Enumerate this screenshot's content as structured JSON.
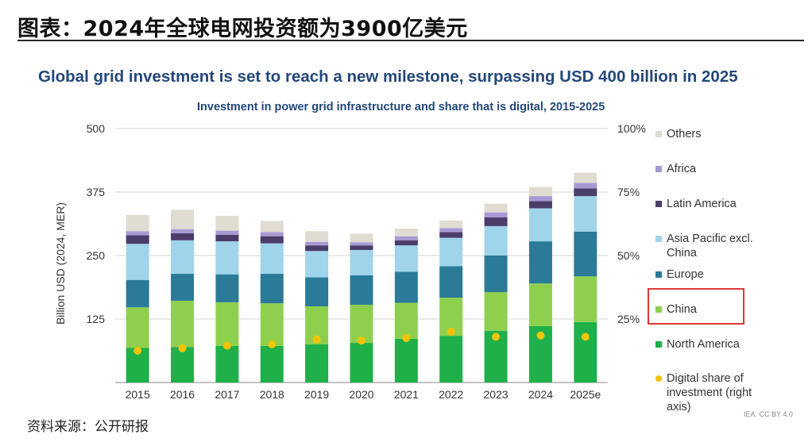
{
  "header": {
    "figure_title": "图表：2024年全球电网投资额为3900亿美元",
    "main_title": "Global grid investment is set to reach a new milestone, surpassing USD 400 billion in 2025",
    "subtitle": "Investment in power grid infrastructure and share that is digital, 2015-2025"
  },
  "footer": {
    "source": "资料来源：公开研报",
    "credit": "IEA. CC BY 4.0"
  },
  "chart_data": {
    "type": "bar",
    "stacked": true,
    "title": "Investment in power grid infrastructure and share that is digital, 2015-2025",
    "ylabel": "Billion USD (2024, MER)",
    "ylim": [
      0,
      500
    ],
    "yticks": [
      125,
      250,
      375,
      500
    ],
    "yticks_right": [
      "25%",
      "50%",
      "75%",
      "100%"
    ],
    "y2lim": [
      0,
      100
    ],
    "categories": [
      "2015",
      "2016",
      "2017",
      "2018",
      "2019",
      "2020",
      "2021",
      "2022",
      "2023",
      "2024",
      "2025e"
    ],
    "series": [
      {
        "name": "North America",
        "color": "#1fb04a",
        "values": [
          68,
          70,
          72,
          72,
          75,
          78,
          86,
          92,
          102,
          111,
          119
        ]
      },
      {
        "name": "China",
        "color": "#8ed04e",
        "values": [
          80,
          91,
          86,
          84,
          75,
          75,
          71,
          75,
          76,
          84,
          90
        ]
      },
      {
        "name": "Europe",
        "color": "#2b7b98",
        "values": [
          54,
          53,
          55,
          58,
          57,
          58,
          61,
          62,
          72,
          83,
          88
        ]
      },
      {
        "name": "Asia Pacific excl. China",
        "color": "#9fd4ea",
        "values": [
          71,
          66,
          65,
          60,
          52,
          50,
          52,
          56,
          58,
          65,
          70
        ]
      },
      {
        "name": "Latin America",
        "color": "#4b3c6a",
        "values": [
          17,
          14,
          13,
          14,
          11,
          9,
          10,
          11,
          17,
          14,
          15
        ]
      },
      {
        "name": "Africa",
        "color": "#a79ad4",
        "values": [
          8,
          8,
          8,
          8,
          7,
          6,
          8,
          8,
          10,
          10,
          11
        ]
      },
      {
        "name": "Others",
        "color": "#e0dcd2",
        "values": [
          32,
          38,
          29,
          22,
          21,
          17,
          15,
          15,
          17,
          18,
          20
        ]
      }
    ],
    "digital_share": {
      "name": "Digital share of investment (right axis)",
      "color": "#f2c400",
      "values": [
        12.5,
        13.5,
        14.5,
        15,
        17,
        16.5,
        17.5,
        20,
        18,
        18.5,
        18
      ]
    },
    "legend": [
      "Others",
      "Africa",
      "Latin America",
      "Asia Pacific excl. China",
      "Europe",
      "China",
      "North America",
      "Digital share of investment (right axis)"
    ],
    "highlighted_legend_entry": "China"
  }
}
